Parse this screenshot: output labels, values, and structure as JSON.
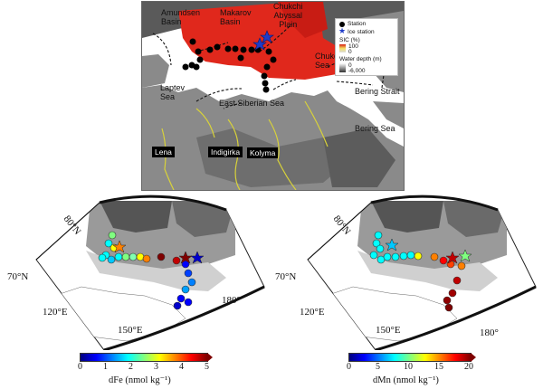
{
  "top_map": {
    "labels": {
      "amundsen": "Amundsen\nBasin",
      "makarov": "Makarov\nBasin",
      "chukchi_abyssal": "Chukchi\nAbyssal\nPlain",
      "chukchi_sea": "Chukchi\nSea",
      "laptev": "Laptev\nSea",
      "east_siberian": "East Siberian Sea",
      "bering_strait": "Bering Strait",
      "bering_sea": "Bering Sea"
    },
    "rivers": [
      "Lena",
      "Indigirka",
      "Kolyma"
    ],
    "legend": {
      "station": "Station",
      "ice_station": "Ice station",
      "sic_title": "SIC (%)",
      "sic_max": "100",
      "sic_min": "0",
      "depth_title": "Water depth (m)",
      "depth_max": "0",
      "depth_min": "-6,000"
    },
    "colors": {
      "sea_ice": "#e0281c",
      "land": "#8a8a8a",
      "ocean": "#ffffff",
      "rivers": "#d8d23a"
    }
  },
  "left_map": {
    "lat_labels": [
      "80°N",
      "70°N"
    ],
    "lon_labels": [
      "120°E",
      "150°E",
      "180°"
    ],
    "colorbar": {
      "ticks": [
        "0",
        "1",
        "2",
        "3",
        "4",
        "5"
      ],
      "label": "dFe (nmol kg⁻¹)"
    }
  },
  "right_map": {
    "lat_labels": [
      "80°N",
      "70°N"
    ],
    "lon_labels": [
      "120°E",
      "150°E",
      "180°"
    ],
    "colorbar": {
      "ticks": [
        "0",
        "5",
        "10",
        "15",
        "20"
      ],
      "label": "dMn (nmol kg⁻¹)"
    }
  },
  "colorbar_colors": [
    "#00007f",
    "#0000ff",
    "#0080ff",
    "#00ffff",
    "#80ff80",
    "#ffff00",
    "#ff8000",
    "#ff0000",
    "#7f0000"
  ]
}
